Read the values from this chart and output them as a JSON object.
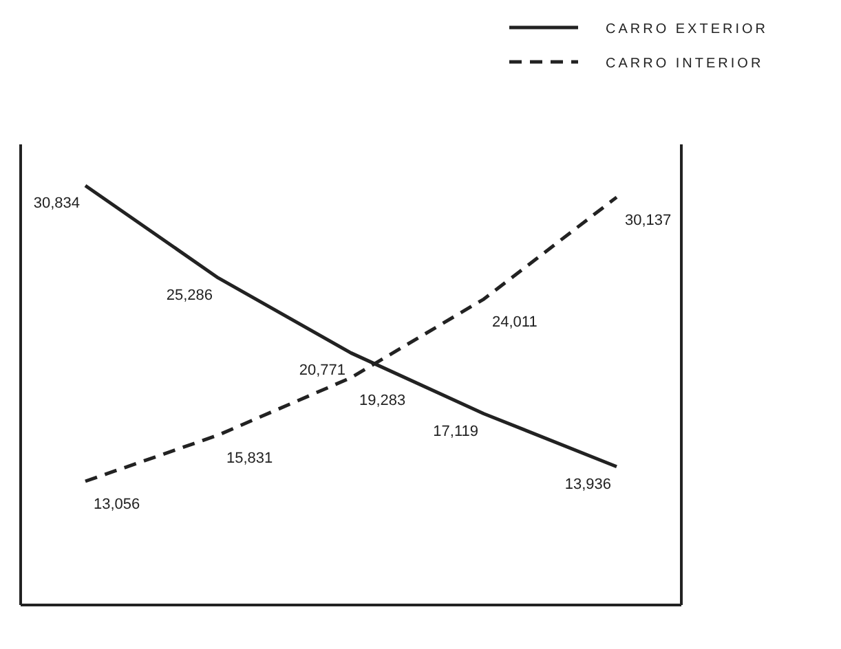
{
  "chart_data": {
    "type": "line",
    "categories": [
      null,
      null,
      null,
      null,
      null
    ],
    "legend": "top right",
    "series": [
      {
        "name": "CARRO EXTERIOR",
        "color": "#222222",
        "line_style": "solid",
        "values": [
          30834,
          25286,
          20771,
          17119,
          13936
        ],
        "value_labels": [
          "30,834",
          "25,286",
          "20,771",
          "17,119",
          "13,936"
        ]
      },
      {
        "name": "CARRO INTERIOR",
        "color": "#222222",
        "line_style": "dashed",
        "values": [
          13056,
          15831,
          19283,
          24011,
          30137
        ],
        "value_labels": [
          "13,056",
          "15,831",
          "19,283",
          "24,011",
          "30,137"
        ]
      }
    ]
  }
}
